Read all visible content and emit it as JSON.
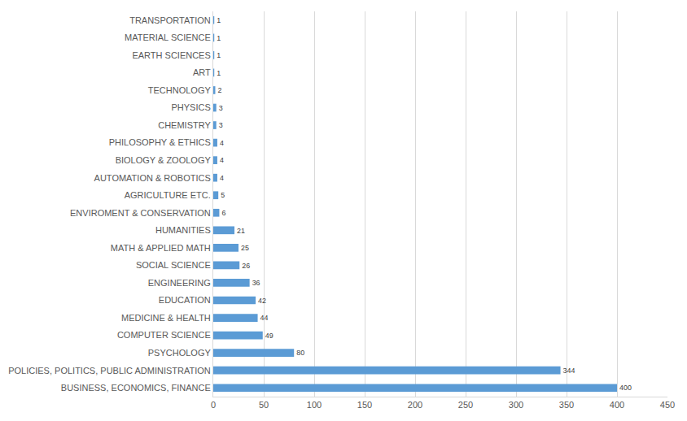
{
  "chart_data": {
    "type": "bar",
    "orientation": "horizontal",
    "categories": [
      "BUSINESS, ECONOMICS, FINANCE",
      "POLICIES, POLITICS, PUBLIC ADMINISTRATION",
      "PSYCHOLOGY",
      "COMPUTER SCIENCE",
      "MEDICINE & HEALTH",
      "EDUCATION",
      "ENGINEERING",
      "SOCIAL SCIENCE",
      "MATH & APPLIED MATH",
      "HUMANITIES",
      "ENVIROMENT & CONSERVATION",
      "AGRICULTURE ETC.",
      "AUTOMATION & ROBOTICS",
      "BIOLOGY & ZOOLOGY",
      "PHILOSOPHY & ETHICS",
      "CHEMISTRY",
      "PHYSICS",
      "TECHNOLOGY",
      "ART",
      "EARTH SCIENCES",
      "MATERIAL SCIENCE",
      "TRANSPORTATION"
    ],
    "values": [
      400,
      344,
      80,
      49,
      44,
      42,
      36,
      26,
      25,
      21,
      6,
      5,
      4,
      4,
      4,
      3,
      3,
      2,
      1,
      1,
      1,
      1
    ],
    "color": "#5b9bd5",
    "xlim": [
      0,
      450
    ],
    "xticks": [
      0,
      50,
      100,
      150,
      200,
      250,
      300,
      350,
      400,
      450
    ],
    "grid": true,
    "data_labels": true
  }
}
